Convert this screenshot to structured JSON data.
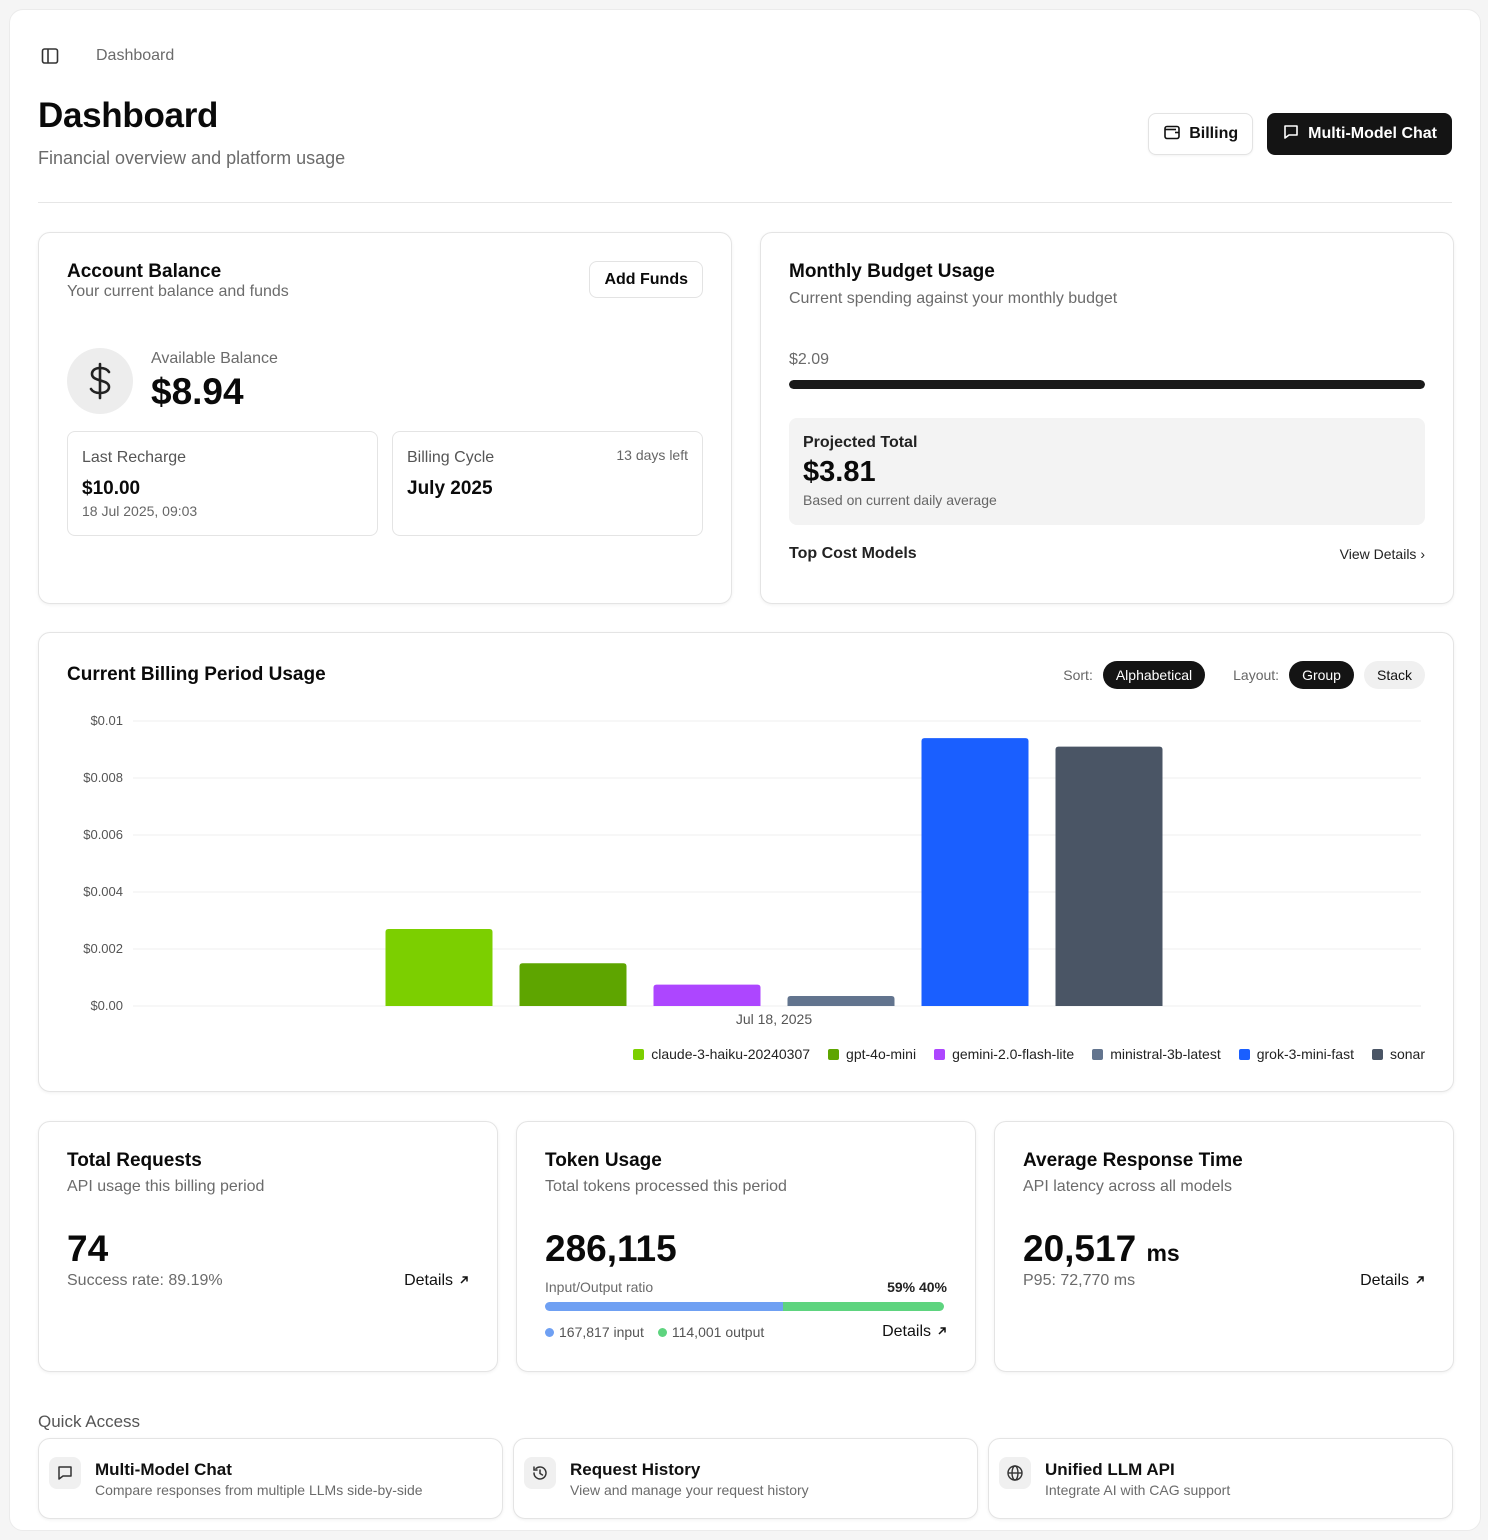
{
  "breadcrumb": "Dashboard",
  "header": {
    "title": "Dashboard",
    "subtitle": "Financial overview and platform usage",
    "billing_label": "Billing",
    "chat_label": "Multi-Model Chat"
  },
  "account": {
    "title": "Account Balance",
    "subtitle": "Your current balance and funds",
    "add_funds_label": "Add Funds",
    "available_label": "Available Balance",
    "available_value": "$8.94",
    "last_recharge_label": "Last Recharge",
    "last_recharge_value": "$10.00",
    "last_recharge_date": "18 Jul 2025, 09:03",
    "billing_cycle_label": "Billing Cycle",
    "billing_cycle_value": "July 2025",
    "days_left": "13 days left"
  },
  "budget": {
    "title": "Monthly Budget Usage",
    "subtitle": "Current spending against your monthly budget",
    "spent": "$2.09",
    "progress_fraction": 1.0,
    "projected_label": "Projected Total",
    "projected_value": "$3.81",
    "projected_note": "Based on current daily average",
    "top_cost_label": "Top Cost Models",
    "view_details_label": "View Details"
  },
  "usage": {
    "title": "Current Billing Period Usage",
    "sort_label": "Sort:",
    "sort_value": "Alphabetical",
    "layout_label": "Layout:",
    "layout_options": [
      "Group",
      "Stack"
    ],
    "layout_selected": "Group"
  },
  "chart_data": {
    "type": "bar",
    "categories": [
      "Jul 18, 2025"
    ],
    "series": [
      {
        "name": "claude-3-haiku-20240307",
        "color": "#7ccf00",
        "values": [
          0.0027
        ]
      },
      {
        "name": "gpt-4o-mini",
        "color": "#5ea500",
        "values": [
          0.0015
        ]
      },
      {
        "name": "gemini-2.0-flash-lite",
        "color": "#ad46ff",
        "values": [
          0.00075
        ]
      },
      {
        "name": "ministral-3b-latest",
        "color": "#62748e",
        "values": [
          0.00035
        ]
      },
      {
        "name": "grok-3-mini-fast",
        "color": "#1a5fff",
        "values": [
          0.0094
        ]
      },
      {
        "name": "sonar",
        "color": "#4a5565",
        "values": [
          0.0091
        ]
      }
    ],
    "y_ticks": [
      "$0.00",
      "$0.002",
      "$0.004",
      "$0.006",
      "$0.008",
      "$0.01"
    ],
    "ylim": [
      0,
      0.01
    ],
    "grid": true,
    "legend": "bottom-right"
  },
  "stats": {
    "requests": {
      "title": "Total Requests",
      "subtitle": "API usage this billing period",
      "value": "74",
      "footer": "Success rate: 89.19%",
      "details_label": "Details"
    },
    "tokens": {
      "title": "Token Usage",
      "subtitle": "Total tokens processed this period",
      "value": "286,115",
      "ratio_label": "Input/Output ratio",
      "ratio_pct": "59% 40%",
      "input_fraction": 0.59,
      "output_fraction": 0.4,
      "input_label": "167,817 input",
      "output_label": "114,001 output",
      "details_label": "Details"
    },
    "latency": {
      "title": "Average Response Time",
      "subtitle": "API latency across all models",
      "value": "20,517",
      "unit": "ms",
      "footer": "P95: 72,770 ms",
      "details_label": "Details"
    }
  },
  "quick_access": {
    "title": "Quick Access",
    "items": [
      {
        "title": "Multi-Model Chat",
        "subtitle": "Compare responses from multiple LLMs side-by-side",
        "icon": "chat-icon"
      },
      {
        "title": "Request History",
        "subtitle": "View and manage your request history",
        "icon": "history-icon"
      },
      {
        "title": "Unified LLM API",
        "subtitle": "Integrate AI with CAG support",
        "icon": "globe-icon"
      }
    ]
  }
}
